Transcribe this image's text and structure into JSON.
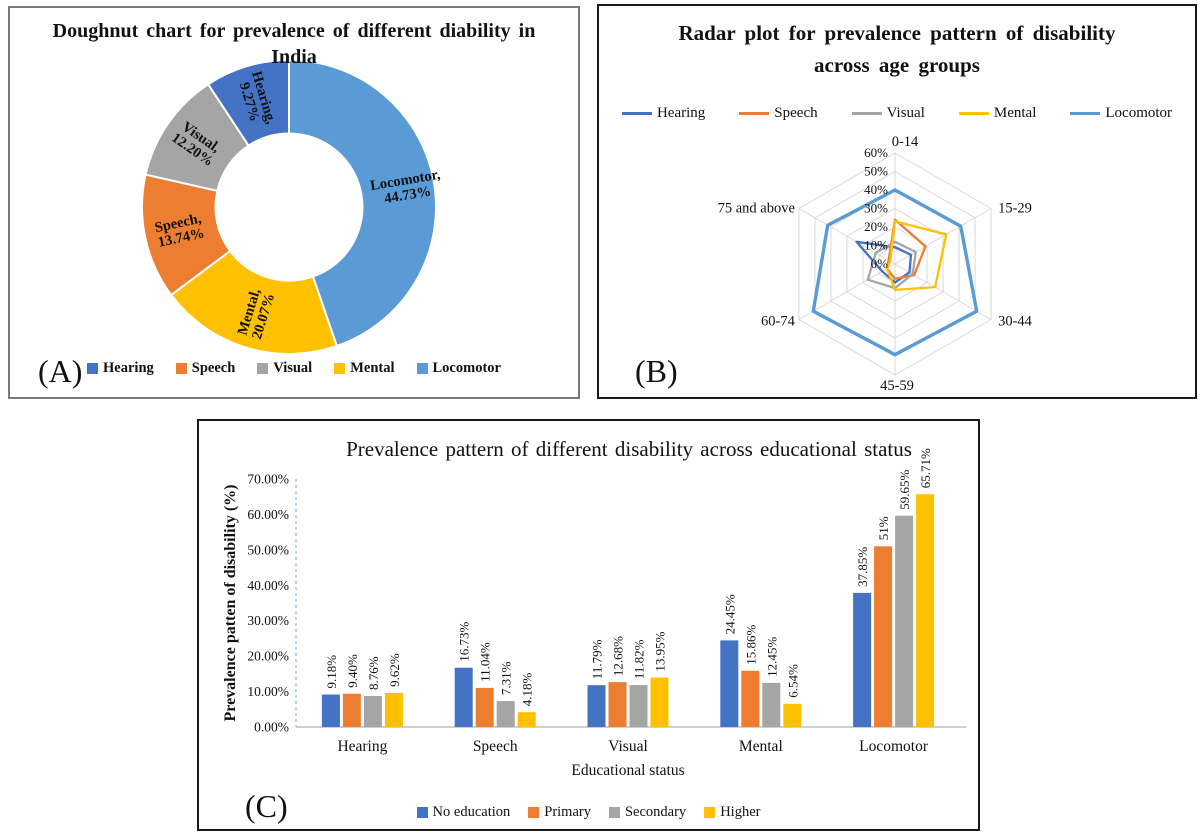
{
  "chart_data": [
    {
      "type": "doughnut",
      "panel_label": "(A)",
      "title": [
        "Doughnut chart for prevalence of different diability in",
        "India"
      ],
      "categories": [
        "Hearing",
        "Speech",
        "Visual",
        "Mental",
        "Locomotor"
      ],
      "values": [
        9.27,
        13.74,
        12.2,
        20.07,
        44.73
      ],
      "slice_labels": [
        [
          "Hearing,",
          "9.27%"
        ],
        [
          "Speech,",
          "13.74%"
        ],
        [
          "Visual,",
          "12.20%"
        ],
        [
          "Mental,",
          "20.07%"
        ],
        [
          "Locomotor,",
          "44.73%"
        ]
      ],
      "colors": {
        "Hearing": "#4472C4",
        "Speech": "#ED7D31",
        "Visual": "#A5A5A5",
        "Mental": "#FFC000",
        "Locomotor": "#5B9BD5"
      },
      "clockwise_order_from_top": [
        "Locomotor",
        "Mental",
        "Speech",
        "Visual",
        "Hearing"
      ],
      "hole_ratio": 0.5,
      "legend": [
        "Hearing",
        "Speech",
        "Visual",
        "Mental",
        "Locomotor"
      ],
      "legend_position": "bottom"
    },
    {
      "type": "radar",
      "panel_label": "(B)",
      "title": [
        "Radar plot for prevalence pattern of disability",
        "across age groups"
      ],
      "axes": [
        "0-14",
        "15-29",
        "30-44",
        "45-59",
        "60-74",
        "75 and above"
      ],
      "rticks": [
        0,
        10,
        20,
        30,
        40,
        50,
        60
      ],
      "rtick_labels": [
        "0%",
        "10%",
        "20%",
        "30%",
        "40%",
        "50%",
        "60%"
      ],
      "rmax": 60,
      "grid": "hexagonal rings with spokes",
      "series": [
        {
          "name": "Hearing",
          "color": "#4472C4",
          "values": [
            9,
            10,
            9,
            10,
            8,
            24
          ]
        },
        {
          "name": "Speech",
          "color": "#ED7D31",
          "values": [
            24,
            19,
            12,
            8,
            5,
            4
          ]
        },
        {
          "name": "Visual",
          "color": "#A5A5A5",
          "values": [
            12,
            13,
            11,
            13,
            17,
            12
          ]
        },
        {
          "name": "Mental",
          "color": "#FFC000",
          "values": [
            23,
            32,
            25,
            14,
            5,
            3
          ]
        },
        {
          "name": "Locomotor",
          "color": "#5B9BD5",
          "values": [
            40,
            41,
            51,
            49,
            51,
            42
          ]
        }
      ],
      "legend": [
        "Hearing",
        "Speech",
        "Visual",
        "Mental",
        "Locomotor"
      ],
      "legend_position": "top"
    },
    {
      "type": "bar",
      "panel_label": "(C)",
      "title": "Prevalence pattern of different disability across educational status",
      "categories": [
        "Hearing",
        "Speech",
        "Visual",
        "Mental",
        "Locomotor"
      ],
      "series": [
        {
          "name": "No education",
          "color": "#4472C4",
          "values": [
            9.18,
            16.73,
            11.79,
            24.45,
            37.85
          ],
          "labels": [
            "9.18%",
            "16.73%",
            "11.79%",
            "24.45%",
            "37.85%"
          ]
        },
        {
          "name": "Primary",
          "color": "#ED7D31",
          "values": [
            9.4,
            11.04,
            12.68,
            15.86,
            51
          ],
          "labels": [
            "9.40%",
            "11.04%",
            "12.68%",
            "15.86%",
            "51%"
          ]
        },
        {
          "name": "Secondary",
          "color": "#A5A5A5",
          "values": [
            8.76,
            7.31,
            11.82,
            12.45,
            59.65
          ],
          "labels": [
            "8.76%",
            "7.31%",
            "11.82%",
            "12.45%",
            "59.65%"
          ]
        },
        {
          "name": "Higher",
          "color": "#FFC000",
          "values": [
            9.62,
            4.18,
            13.95,
            6.54,
            65.71
          ],
          "labels": [
            "9.62%",
            "4.18%",
            "13.95%",
            "6.54%",
            "65.71%"
          ]
        }
      ],
      "xlabel": "Educational status",
      "ylabel": "Prevalence patten of disability (%)",
      "ylim": [
        0,
        70
      ],
      "ytick_labels": [
        "0.00%",
        "10.00%",
        "20.00%",
        "30.00%",
        "40.00%",
        "50.00%",
        "60.00%",
        "70.00%"
      ],
      "value_labels_rotated": true,
      "legend": [
        "No education",
        "Primary",
        "Secondary",
        "Higher"
      ],
      "legend_position": "bottom"
    }
  ],
  "style_colors": {
    "grid_gray": "#D9D9D9",
    "axis_gray": "#BFBFBF",
    "dashed_axis_blue": "#A6C9EC"
  }
}
